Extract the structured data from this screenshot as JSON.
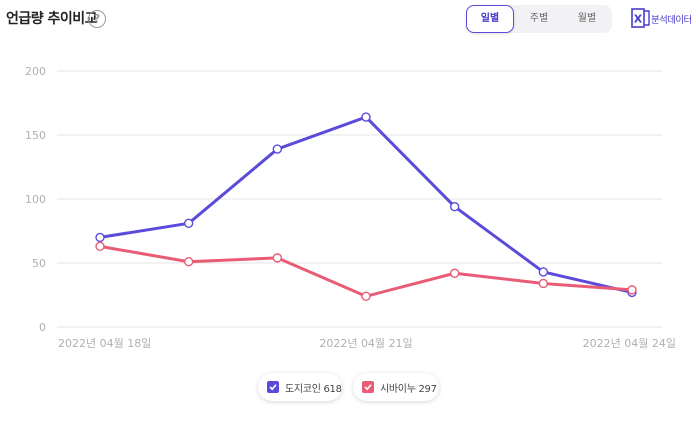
{
  "header": {
    "title": "언급량 추이비교",
    "help_glyph": "?",
    "period_tabs": [
      {
        "label": "일별",
        "active": true
      },
      {
        "label": "주별",
        "active": false
      },
      {
        "label": "월별",
        "active": false
      }
    ],
    "export_label": "분석데이터",
    "export_icon_text": "X"
  },
  "colors": {
    "accent": "#5b4bdb",
    "series_dogecoin": "#5b4bdb",
    "series_shiba": "#e85d75",
    "grid": "#e6e6e6",
    "tick": "#b0b0b0"
  },
  "chart_data": {
    "type": "line",
    "title": "",
    "xlabel": "",
    "ylabel": "",
    "ylim": [
      0,
      200
    ],
    "yticks": [
      0,
      50,
      100,
      150,
      200
    ],
    "x": [
      "2022-04-18",
      "2022-04-19",
      "2022-04-20",
      "2022-04-21",
      "2022-04-22",
      "2022-04-23",
      "2022-04-24"
    ],
    "xtick_labels": [
      {
        "index": 0,
        "label": "2022년 04월 18일"
      },
      {
        "index": 3,
        "label": "2022년 04월 21일"
      },
      {
        "index": 6,
        "label": "2022년 04월 24일"
      }
    ],
    "series": [
      {
        "name": "도지코인",
        "total": "618",
        "color": "#5b4bdb",
        "values": [
          70,
          81,
          139,
          164,
          94,
          43,
          27
        ]
      },
      {
        "name": "시바이누",
        "total": "297",
        "color": "#e85d75",
        "values": [
          63,
          51,
          54,
          24,
          42,
          34,
          29
        ]
      }
    ],
    "grid": true,
    "legend": "bottom-center"
  }
}
